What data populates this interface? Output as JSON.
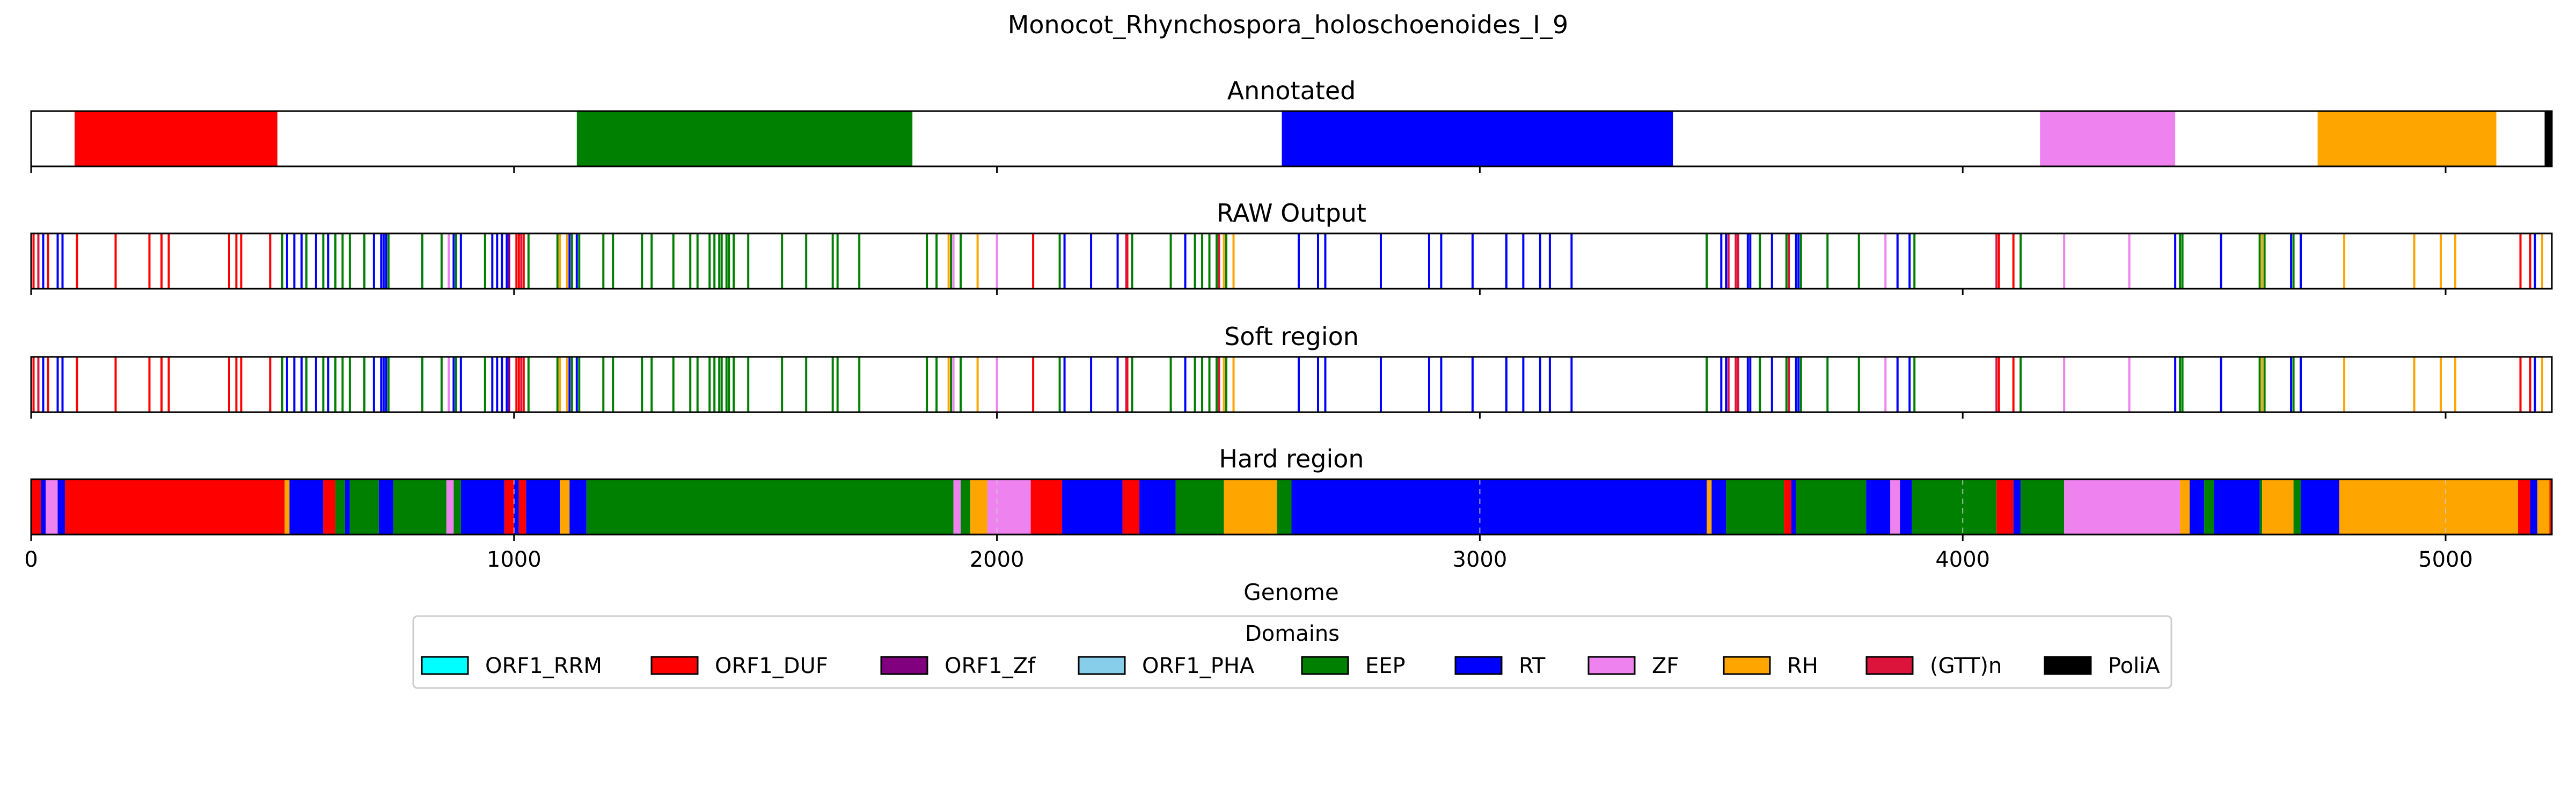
{
  "figure_title": "Monocot_Rhynchospora_holoschoenoides_I_9",
  "chart_data": {
    "type": "genome-track",
    "xlabel": "Genome",
    "xlim": [
      0,
      5220
    ],
    "xticks": [
      0,
      1000,
      2000,
      3000,
      4000,
      5000
    ],
    "xtick_labels": [
      "0",
      "1000",
      "2000",
      "3000",
      "4000",
      "5000"
    ],
    "legend_title": "Domains",
    "legend_position": "bottom-center",
    "domains": [
      {
        "name": "ORF1_RRM",
        "color": "#00ffff"
      },
      {
        "name": "ORF1_DUF",
        "color": "#ff0000"
      },
      {
        "name": "ORF1_Zf",
        "color": "#800080"
      },
      {
        "name": "ORF1_PHA",
        "color": "#87ceeb"
      },
      {
        "name": "EEP",
        "color": "#008000"
      },
      {
        "name": "RT",
        "color": "#0000ff"
      },
      {
        "name": "ZF",
        "color": "#ee82ee"
      },
      {
        "name": "RH",
        "color": "#ffa500"
      },
      {
        "name": "(GTT)n",
        "color": "#dc143c"
      },
      {
        "name": "PoliA",
        "color": "#000000"
      }
    ],
    "panels": [
      {
        "title": "Annotated",
        "kind": "regions",
        "regions": [
          {
            "domain": "ORF1_DUF",
            "start": 90,
            "end": 510
          },
          {
            "domain": "EEP",
            "start": 1130,
            "end": 1825
          },
          {
            "domain": "RT",
            "start": 2590,
            "end": 3400
          },
          {
            "domain": "ZF",
            "start": 4160,
            "end": 4440
          },
          {
            "domain": "RH",
            "start": 4735,
            "end": 5105
          },
          {
            "domain": "PoliA",
            "start": 5205,
            "end": 5220
          }
        ]
      },
      {
        "title": "RAW Output",
        "kind": "hits",
        "hits": [
          {
            "domain": "ORF1_DUF",
            "positions": [
              5,
              35,
              95,
              175,
              245,
              270,
              285,
              410,
              425,
              435,
              495,
              1005,
              1010,
              1020,
              2075,
              2270,
              4075,
              4105,
              5155,
              5175
            ]
          },
          {
            "domain": "(GTT)n",
            "positions": [
              15,
              1015,
              2268,
              2460,
              3515,
              3530,
              3535,
              3640,
              4070
            ]
          },
          {
            "domain": "RT",
            "positions": [
              25,
              55,
              65,
              530,
              545,
              560,
              590,
              615,
              710,
              725,
              730,
              735,
              875,
              890,
              955,
              965,
              975,
              985,
              1115,
              1130,
              2140,
              2195,
              2250,
              2390,
              2625,
              2665,
              2680,
              2795,
              2895,
              2920,
              2985,
              3055,
              3090,
              3125,
              3145,
              3190,
              3470,
              3500,
              3510,
              3555,
              3560,
              3605,
              3655,
              3660,
              3865,
              3890,
              4440,
              4535,
              4680,
              4700,
              5185
            ]
          },
          {
            "domain": "EEP",
            "positions": [
              520,
              570,
              605,
              630,
              645,
              660,
              690,
              740,
              810,
              850,
              865,
              880,
              940,
              1030,
              1090,
              1120,
              1135,
              1185,
              1205,
              1265,
              1285,
              1330,
              1365,
              1380,
              1405,
              1415,
              1425,
              1430,
              1440,
              1445,
              1455,
              1485,
              1555,
              1605,
              1660,
              1670,
              1715,
              1855,
              1875,
              1905,
              1925,
              2130,
              2280,
              2360,
              2410,
              2425,
              2440,
              2455,
              2475,
              3470,
              3580,
              3635,
              3665,
              3720,
              3785,
              3900,
              4120,
              4450,
              4455,
              4615,
              4625,
              4685
            ]
          },
          {
            "domain": "RH",
            "positions": [
              1095,
              1110,
              1900,
              1960,
              2470,
              2490,
              4620,
              4790,
              4935,
              4990,
              5020,
              5200
            ]
          },
          {
            "domain": "ZF",
            "positions": [
              865,
              1910,
              2000,
              3840,
              4210,
              4345
            ]
          },
          {
            "domain": "ORF1_Zf",
            "positions": [
              990
            ]
          }
        ]
      },
      {
        "title": "Soft region",
        "kind": "hits",
        "hits": [
          {
            "domain": "ORF1_DUF",
            "positions": [
              5,
              35,
              95,
              175,
              245,
              270,
              285,
              410,
              425,
              435,
              495,
              1005,
              1010,
              1020,
              2075,
              2270,
              4075,
              4105,
              5155,
              5175
            ]
          },
          {
            "domain": "(GTT)n",
            "positions": [
              15,
              1015,
              2268,
              2460,
              3515,
              3530,
              3535,
              3640,
              4070
            ]
          },
          {
            "domain": "RT",
            "positions": [
              25,
              55,
              65,
              530,
              545,
              560,
              590,
              615,
              710,
              725,
              730,
              735,
              875,
              890,
              955,
              965,
              975,
              985,
              1115,
              1130,
              2140,
              2195,
              2250,
              2390,
              2625,
              2665,
              2680,
              2795,
              2895,
              2920,
              2985,
              3055,
              3090,
              3125,
              3145,
              3190,
              3470,
              3500,
              3510,
              3555,
              3560,
              3605,
              3655,
              3660,
              3865,
              3890,
              4440,
              4535,
              4680,
              4700,
              5185
            ]
          },
          {
            "domain": "EEP",
            "positions": [
              520,
              570,
              605,
              630,
              645,
              660,
              690,
              740,
              810,
              850,
              865,
              880,
              940,
              1030,
              1090,
              1120,
              1135,
              1185,
              1205,
              1265,
              1285,
              1330,
              1365,
              1380,
              1405,
              1415,
              1425,
              1430,
              1440,
              1445,
              1455,
              1485,
              1555,
              1605,
              1660,
              1670,
              1715,
              1855,
              1875,
              1905,
              1925,
              2130,
              2280,
              2360,
              2410,
              2425,
              2440,
              2455,
              2475,
              3470,
              3580,
              3635,
              3665,
              3720,
              3785,
              3900,
              4120,
              4450,
              4455,
              4615,
              4625,
              4685
            ]
          },
          {
            "domain": "RH",
            "positions": [
              1095,
              1110,
              1900,
              1960,
              2470,
              2490,
              4620,
              4790,
              4935,
              4990,
              5020,
              5200
            ]
          },
          {
            "domain": "ZF",
            "positions": [
              865,
              1910,
              2000,
              3840,
              4210,
              4345
            ]
          },
          {
            "domain": "ORF1_Zf",
            "positions": [
              990
            ]
          }
        ]
      },
      {
        "title": "Hard region",
        "kind": "regions",
        "regions": [
          {
            "domain": "ORF1_DUF",
            "start": 0,
            "end": 20
          },
          {
            "domain": "RT",
            "start": 20,
            "end": 30
          },
          {
            "domain": "ZF",
            "start": 30,
            "end": 55
          },
          {
            "domain": "RT",
            "start": 55,
            "end": 70
          },
          {
            "domain": "ORF1_DUF",
            "start": 70,
            "end": 525
          },
          {
            "domain": "RH",
            "start": 525,
            "end": 535
          },
          {
            "domain": "RT",
            "start": 535,
            "end": 605
          },
          {
            "domain": "ORF1_DUF",
            "start": 605,
            "end": 630
          },
          {
            "domain": "EEP",
            "start": 630,
            "end": 650
          },
          {
            "domain": "RT",
            "start": 650,
            "end": 660
          },
          {
            "domain": "EEP",
            "start": 660,
            "end": 720
          },
          {
            "domain": "RT",
            "start": 720,
            "end": 750
          },
          {
            "domain": "EEP",
            "start": 750,
            "end": 860
          },
          {
            "domain": "ZF",
            "start": 860,
            "end": 875
          },
          {
            "domain": "EEP",
            "start": 875,
            "end": 890
          },
          {
            "domain": "RT",
            "start": 890,
            "end": 980
          },
          {
            "domain": "ORF1_DUF",
            "start": 980,
            "end": 1000
          },
          {
            "domain": "RT",
            "start": 1000,
            "end": 1010
          },
          {
            "domain": "ORF1_DUF",
            "start": 1010,
            "end": 1025
          },
          {
            "domain": "RT",
            "start": 1025,
            "end": 1095
          },
          {
            "domain": "RH",
            "start": 1095,
            "end": 1115
          },
          {
            "domain": "RT",
            "start": 1115,
            "end": 1150
          },
          {
            "domain": "EEP",
            "start": 1150,
            "end": 1910
          },
          {
            "domain": "ZF",
            "start": 1910,
            "end": 1925
          },
          {
            "domain": "EEP",
            "start": 1925,
            "end": 1945
          },
          {
            "domain": "RH",
            "start": 1945,
            "end": 1980
          },
          {
            "domain": "ZF",
            "start": 1980,
            "end": 2070
          },
          {
            "domain": "ORF1_DUF",
            "start": 2070,
            "end": 2135
          },
          {
            "domain": "RT",
            "start": 2135,
            "end": 2260
          },
          {
            "domain": "ORF1_DUF",
            "start": 2260,
            "end": 2295
          },
          {
            "domain": "RT",
            "start": 2295,
            "end": 2370
          },
          {
            "domain": "EEP",
            "start": 2370,
            "end": 2470
          },
          {
            "domain": "RH",
            "start": 2470,
            "end": 2580
          },
          {
            "domain": "EEP",
            "start": 2580,
            "end": 2610
          },
          {
            "domain": "RT",
            "start": 2610,
            "end": 3470
          },
          {
            "domain": "RH",
            "start": 3470,
            "end": 3480
          },
          {
            "domain": "RT",
            "start": 3480,
            "end": 3510
          },
          {
            "domain": "EEP",
            "start": 3510,
            "end": 3630
          },
          {
            "domain": "ORF1_DUF",
            "start": 3630,
            "end": 3645
          },
          {
            "domain": "RT",
            "start": 3645,
            "end": 3655
          },
          {
            "domain": "EEP",
            "start": 3655,
            "end": 3800
          },
          {
            "domain": "RT",
            "start": 3800,
            "end": 3850
          },
          {
            "domain": "ZF",
            "start": 3850,
            "end": 3870
          },
          {
            "domain": "RT",
            "start": 3870,
            "end": 3895
          },
          {
            "domain": "EEP",
            "start": 3895,
            "end": 4070
          },
          {
            "domain": "ORF1_DUF",
            "start": 4070,
            "end": 4105
          },
          {
            "domain": "RT",
            "start": 4105,
            "end": 4120
          },
          {
            "domain": "EEP",
            "start": 4120,
            "end": 4210
          },
          {
            "domain": "ZF",
            "start": 4210,
            "end": 4450
          },
          {
            "domain": "RH",
            "start": 4450,
            "end": 4470
          },
          {
            "domain": "RT",
            "start": 4470,
            "end": 4500
          },
          {
            "domain": "EEP",
            "start": 4500,
            "end": 4520
          },
          {
            "domain": "RT",
            "start": 4520,
            "end": 4615
          },
          {
            "domain": "EEP",
            "start": 4615,
            "end": 4620
          },
          {
            "domain": "RH",
            "start": 4620,
            "end": 4685
          },
          {
            "domain": "EEP",
            "start": 4685,
            "end": 4700
          },
          {
            "domain": "RT",
            "start": 4700,
            "end": 4780
          },
          {
            "domain": "RH",
            "start": 4780,
            "end": 5150
          },
          {
            "domain": "ORF1_DUF",
            "start": 5150,
            "end": 5175
          },
          {
            "domain": "RT",
            "start": 5175,
            "end": 5190
          },
          {
            "domain": "RH",
            "start": 5190,
            "end": 5215
          },
          {
            "domain": "ORF1_DUF",
            "start": 5215,
            "end": 5220
          }
        ]
      }
    ]
  }
}
